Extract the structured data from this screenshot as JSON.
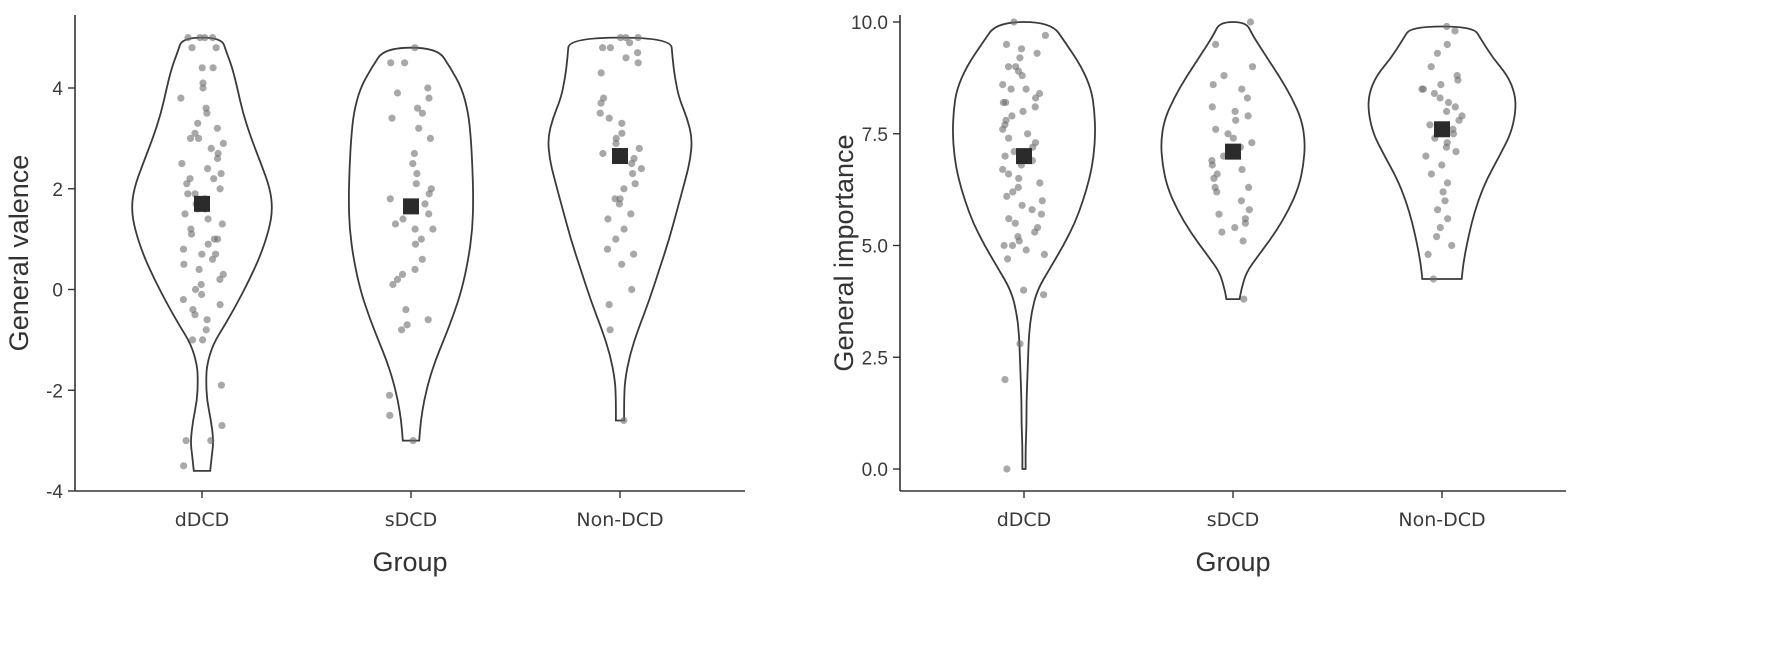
{
  "chart_data": [
    {
      "type": "violin",
      "xlabel": "Group",
      "ylabel": "General valence",
      "categories": [
        "dDCD",
        "sDCD",
        "Non-DCD"
      ],
      "ylim": [
        -4,
        5.3
      ],
      "yticks": [
        -4,
        -2,
        0,
        2,
        4
      ],
      "ytick_labels": [
        "-4",
        "-2",
        "0",
        "2",
        "4"
      ],
      "grid": false,
      "series": [
        {
          "category": "dDCD",
          "mean": 1.7,
          "range": [
            -3.6,
            5.0
          ],
          "density": [
            [
              -3.6,
              0.1
            ],
            [
              -3.3,
              0.12
            ],
            [
              -3.0,
              0.14
            ],
            [
              -2.6,
              0.11
            ],
            [
              -2.2,
              0.06
            ],
            [
              -1.8,
              0.05
            ],
            [
              -1.5,
              0.06
            ],
            [
              -1.1,
              0.13
            ],
            [
              -0.7,
              0.28
            ],
            [
              -0.3,
              0.42
            ],
            [
              0.2,
              0.58
            ],
            [
              0.7,
              0.72
            ],
            [
              1.2,
              0.82
            ],
            [
              1.6,
              0.86
            ],
            [
              2.0,
              0.83
            ],
            [
              2.5,
              0.72
            ],
            [
              3.0,
              0.6
            ],
            [
              3.5,
              0.5
            ],
            [
              4.0,
              0.43
            ],
            [
              4.4,
              0.37
            ],
            [
              4.7,
              0.3
            ],
            [
              5.0,
              0.24
            ]
          ],
          "points": [
            5.0,
            5.0,
            5.0,
            5.0,
            4.8,
            4.8,
            4.4,
            4.4,
            4.1,
            4.0,
            3.8,
            3.6,
            3.5,
            3.3,
            3.2,
            3.1,
            3.0,
            3.0,
            2.9,
            2.8,
            2.7,
            2.6,
            2.5,
            2.4,
            2.3,
            2.2,
            2.2,
            2.1,
            2.0,
            1.9,
            1.9,
            1.8,
            1.7,
            1.6,
            1.6,
            1.5,
            1.4,
            1.3,
            1.2,
            1.1,
            1.0,
            1.0,
            0.9,
            0.8,
            0.7,
            0.7,
            0.6,
            0.5,
            0.4,
            0.3,
            0.2,
            0.1,
            0.0,
            -0.1,
            -0.2,
            -0.3,
            -0.4,
            -0.5,
            -0.6,
            -0.8,
            -1.0,
            -1.0,
            -1.9,
            -2.7,
            -3.0,
            -3.0,
            -3.5
          ]
        },
        {
          "category": "sDCD",
          "mean": 1.65,
          "range": [
            -3.0,
            4.8
          ],
          "density": [
            [
              -3.0,
              0.1
            ],
            [
              -2.6,
              0.12
            ],
            [
              -2.2,
              0.16
            ],
            [
              -1.8,
              0.22
            ],
            [
              -1.4,
              0.3
            ],
            [
              -1.0,
              0.4
            ],
            [
              -0.5,
              0.52
            ],
            [
              0.0,
              0.62
            ],
            [
              0.6,
              0.7
            ],
            [
              1.2,
              0.75
            ],
            [
              1.8,
              0.76
            ],
            [
              2.4,
              0.75
            ],
            [
              3.0,
              0.73
            ],
            [
              3.5,
              0.7
            ],
            [
              4.0,
              0.62
            ],
            [
              4.4,
              0.48
            ],
            [
              4.8,
              0.32
            ]
          ],
          "points": [
            4.8,
            4.5,
            4.5,
            4.0,
            3.9,
            3.8,
            3.6,
            3.5,
            3.4,
            3.2,
            3.0,
            2.7,
            2.5,
            2.3,
            2.1,
            2.0,
            1.9,
            1.8,
            1.7,
            1.5,
            1.4,
            1.3,
            1.2,
            1.2,
            1.0,
            0.9,
            0.6,
            0.4,
            0.3,
            0.2,
            0.1,
            -0.4,
            -0.6,
            -0.7,
            -0.8,
            -2.1,
            -2.5,
            -3.0
          ]
        },
        {
          "category": "Non-DCD",
          "mean": 2.65,
          "range": [
            -2.6,
            5.0
          ],
          "density": [
            [
              -2.6,
              0.05
            ],
            [
              -2.2,
              0.05
            ],
            [
              -1.8,
              0.06
            ],
            [
              -1.3,
              0.12
            ],
            [
              -0.8,
              0.22
            ],
            [
              -0.2,
              0.36
            ],
            [
              0.4,
              0.48
            ],
            [
              1.0,
              0.6
            ],
            [
              1.6,
              0.7
            ],
            [
              2.2,
              0.8
            ],
            [
              2.6,
              0.86
            ],
            [
              3.0,
              0.88
            ],
            [
              3.4,
              0.82
            ],
            [
              3.8,
              0.72
            ],
            [
              4.2,
              0.67
            ],
            [
              4.6,
              0.64
            ],
            [
              5.0,
              0.62
            ]
          ],
          "points": [
            5.0,
            5.0,
            5.0,
            4.9,
            4.8,
            4.8,
            4.7,
            4.6,
            4.5,
            4.3,
            3.8,
            3.7,
            3.5,
            3.4,
            3.3,
            3.1,
            3.0,
            2.9,
            2.8,
            2.7,
            2.6,
            2.5,
            2.4,
            2.3,
            2.1,
            2.0,
            1.8,
            1.8,
            1.7,
            1.5,
            1.4,
            1.2,
            1.0,
            0.8,
            0.7,
            0.5,
            0.0,
            -0.3,
            -0.8,
            -2.6
          ]
        }
      ]
    },
    {
      "type": "violin",
      "xlabel": "Group",
      "ylabel": "General importance",
      "categories": [
        "dDCD",
        "sDCD",
        "Non-DCD"
      ],
      "ylim": [
        -0.5,
        10.3
      ],
      "yticks": [
        0.0,
        2.5,
        5.0,
        7.5,
        10.0
      ],
      "ytick_labels": [
        "0.0",
        "2.5",
        "5.0",
        "7.5",
        "10.0"
      ],
      "grid": false,
      "series": [
        {
          "category": "dDCD",
          "mean": 7.0,
          "range": [
            0.0,
            10.0
          ],
          "density": [
            [
              0.0,
              0.02
            ],
            [
              0.5,
              0.02
            ],
            [
              1.0,
              0.03
            ],
            [
              1.5,
              0.03
            ],
            [
              2.0,
              0.04
            ],
            [
              2.5,
              0.05
            ],
            [
              3.0,
              0.06
            ],
            [
              3.5,
              0.09
            ],
            [
              4.0,
              0.16
            ],
            [
              4.5,
              0.32
            ],
            [
              5.0,
              0.48
            ],
            [
              5.5,
              0.62
            ],
            [
              6.0,
              0.72
            ],
            [
              6.5,
              0.8
            ],
            [
              7.0,
              0.85
            ],
            [
              7.5,
              0.87
            ],
            [
              8.0,
              0.86
            ],
            [
              8.5,
              0.82
            ],
            [
              9.0,
              0.7
            ],
            [
              9.5,
              0.52
            ],
            [
              10.0,
              0.33
            ]
          ],
          "points": [
            10.0,
            9.7,
            9.5,
            9.4,
            9.3,
            9.2,
            9.0,
            9.0,
            8.9,
            8.8,
            8.6,
            8.5,
            8.5,
            8.4,
            8.3,
            8.2,
            8.2,
            8.1,
            8.0,
            7.9,
            7.8,
            7.7,
            7.6,
            7.5,
            7.4,
            7.3,
            7.2,
            7.1,
            7.0,
            6.9,
            6.8,
            6.7,
            6.6,
            6.5,
            6.4,
            6.3,
            6.2,
            6.1,
            6.0,
            5.9,
            5.8,
            5.7,
            5.6,
            5.5,
            5.4,
            5.3,
            5.2,
            5.1,
            5.0,
            5.0,
            4.9,
            4.8,
            4.7,
            4.0,
            3.9,
            2.8,
            2.0,
            0.0
          ]
        },
        {
          "category": "sDCD",
          "mean": 7.1,
          "range": [
            3.8,
            10.0
          ],
          "density": [
            [
              3.8,
              0.08
            ],
            [
              4.0,
              0.1
            ],
            [
              4.4,
              0.16
            ],
            [
              4.8,
              0.32
            ],
            [
              5.3,
              0.52
            ],
            [
              5.8,
              0.68
            ],
            [
              6.3,
              0.8
            ],
            [
              6.8,
              0.86
            ],
            [
              7.3,
              0.88
            ],
            [
              7.8,
              0.84
            ],
            [
              8.3,
              0.72
            ],
            [
              8.8,
              0.56
            ],
            [
              9.3,
              0.38
            ],
            [
              9.7,
              0.24
            ],
            [
              10.0,
              0.16
            ]
          ],
          "points": [
            10.0,
            9.5,
            9.0,
            8.8,
            8.6,
            8.5,
            8.3,
            8.1,
            8.0,
            7.9,
            7.8,
            7.6,
            7.5,
            7.4,
            7.3,
            7.2,
            7.1,
            7.0,
            6.9,
            6.8,
            6.7,
            6.6,
            6.5,
            6.3,
            6.3,
            6.2,
            6.0,
            5.8,
            5.7,
            5.6,
            5.5,
            5.4,
            5.3,
            5.1,
            3.8
          ]
        },
        {
          "category": "Non-DCD",
          "mean": 7.6,
          "range": [
            4.25,
            9.9
          ],
          "density": [
            [
              4.25,
              0.24
            ],
            [
              4.6,
              0.26
            ],
            [
              5.0,
              0.3
            ],
            [
              5.5,
              0.36
            ],
            [
              6.0,
              0.44
            ],
            [
              6.5,
              0.55
            ],
            [
              7.0,
              0.7
            ],
            [
              7.5,
              0.84
            ],
            [
              8.0,
              0.9
            ],
            [
              8.4,
              0.89
            ],
            [
              8.8,
              0.8
            ],
            [
              9.2,
              0.62
            ],
            [
              9.6,
              0.48
            ],
            [
              9.9,
              0.38
            ]
          ],
          "points": [
            9.9,
            9.8,
            9.5,
            9.3,
            9.0,
            8.8,
            8.7,
            8.6,
            8.5,
            8.5,
            8.4,
            8.3,
            8.2,
            8.1,
            8.0,
            7.9,
            7.8,
            7.7,
            7.6,
            7.5,
            7.4,
            7.3,
            7.2,
            7.1,
            7.0,
            6.8,
            6.6,
            6.4,
            6.2,
            6.0,
            5.8,
            5.6,
            5.4,
            5.2,
            5.0,
            4.8,
            4.25
          ]
        }
      ]
    }
  ]
}
